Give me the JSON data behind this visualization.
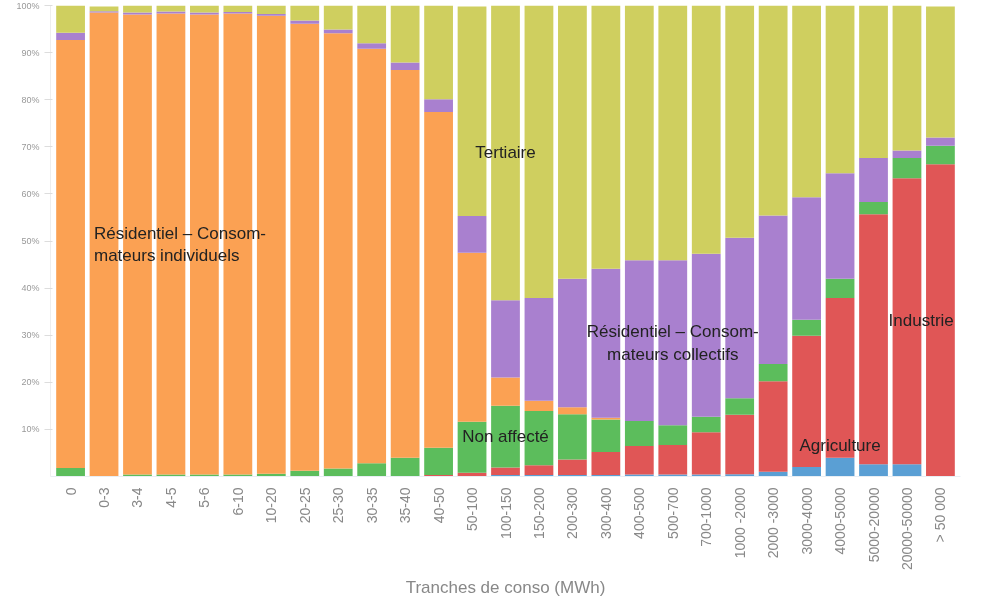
{
  "chart_data": {
    "type": "bar",
    "stacked": true,
    "xlabel": "Tranches de conso (MWh)",
    "categories": [
      "0",
      "0-3",
      "3-4",
      "4-5",
      "5-6",
      "6-10",
      "10-20",
      "20-25",
      "25-30",
      "30-35",
      "35-40",
      "40-50",
      "50-100",
      "100-150",
      "150-200",
      "200-300",
      "300-400",
      "400-500",
      "500-700",
      "700-1000",
      "1000 -2000",
      "2000 -3000",
      "3000-4000",
      "4000-5000",
      "5000-20000",
      "20000-50000",
      "> 50 000"
    ],
    "ylim": [
      0,
      100
    ],
    "yticks": [
      {
        "value": 10,
        "label": "10%"
      },
      {
        "value": 20,
        "label": "20%"
      },
      {
        "value": 30,
        "label": "30%"
      },
      {
        "value": 40,
        "label": "40%"
      },
      {
        "value": 50,
        "label": "50%"
      },
      {
        "value": 60,
        "label": "60%"
      },
      {
        "value": 70,
        "label": "70%"
      },
      {
        "value": 80,
        "label": "80%"
      },
      {
        "value": 90,
        "label": "90%"
      },
      {
        "value": 100,
        "label": "100%"
      }
    ],
    "grid": false,
    "legend": false,
    "series": [
      {
        "name": "Agriculture",
        "color": "#5a9fd4",
        "values": [
          0,
          0,
          0,
          0,
          0,
          0,
          0,
          0,
          0,
          0,
          0,
          0,
          null,
          0.3,
          0.3,
          0.3,
          0.3,
          0.4,
          0.4,
          0.4,
          0.5,
          1.0,
          2.0,
          4.0,
          2.6,
          2.6,
          null
        ]
      },
      {
        "name": "Industrie",
        "color": "#e05656",
        "values": [
          0,
          0,
          0,
          0,
          0,
          0,
          0,
          0,
          0,
          0,
          0,
          0.3,
          0.8,
          1.6,
          2.1,
          3.3,
          4.9,
          6.1,
          6.3,
          9.0,
          12.6,
          19.2,
          27.9,
          33.9,
          53.1,
          60.7,
          66.3
        ]
      },
      {
        "name": "Non affecté",
        "color": "#5cbd5c",
        "values": [
          1.8,
          null,
          0.4,
          0.4,
          0.4,
          0.4,
          0.6,
          1.2,
          1.7,
          2.8,
          4.0,
          5.8,
          10.8,
          13.1,
          11.5,
          9.6,
          6.9,
          5.3,
          4.2,
          3.3,
          3.5,
          3.7,
          3.4,
          4.1,
          2.6,
          4.3,
          3.9
        ]
      },
      {
        "name": "Résidentiel – Consom-\nmateurs individuels",
        "color": "#fba153",
        "values": [
          90.9,
          98.5,
          97.7,
          97.9,
          97.7,
          97.9,
          97.2,
          94.9,
          92.4,
          88.0,
          82.3,
          71.3,
          35.9,
          6.0,
          2.2,
          1.5,
          0.4,
          0,
          0,
          0,
          0,
          0,
          0,
          0,
          0,
          0,
          0
        ]
      },
      {
        "name": "Résidentiel – Consom-\nmateurs collectifs",
        "color": "#a980cf",
        "values": [
          1.5,
          0.3,
          0.4,
          0.4,
          0.4,
          0.3,
          0.4,
          0.7,
          0.8,
          1.2,
          1.6,
          2.7,
          7.8,
          16.4,
          21.8,
          27.3,
          31.6,
          34.1,
          35.0,
          34.6,
          34.1,
          31.5,
          26.0,
          22.4,
          9.3,
          1.6,
          1.8
        ]
      },
      {
        "name": "Tertiaire",
        "color": "#cfcf5f",
        "values": [
          5.8,
          1.0,
          1.5,
          1.3,
          1.5,
          1.4,
          1.8,
          3.2,
          5.1,
          8.0,
          12.1,
          19.9,
          44.5,
          62.6,
          62.1,
          58.0,
          55.9,
          54.1,
          54.1,
          52.7,
          49.3,
          44.6,
          40.7,
          35.6,
          32.4,
          30.8,
          27.8
        ]
      }
    ]
  }
}
